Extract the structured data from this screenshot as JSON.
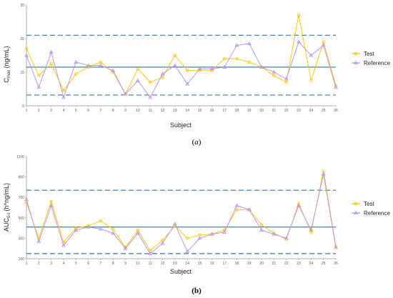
{
  "colors": {
    "test": "#FFC000",
    "reference": "#B48CF0",
    "mean_line": "#2E75B6",
    "limit_line": "#2E75B6",
    "axis": "#999999"
  },
  "panel_labels": [
    {
      "open": "(",
      "letter": "a",
      "close": ")"
    },
    {
      "open": "(",
      "letter": "b",
      "close": ")"
    }
  ],
  "chart_data": [
    {
      "type": "line",
      "xlabel": "Subject",
      "ylabel": {
        "base": "C",
        "sub": "max",
        "rest": " (ng/mL)"
      },
      "x": [
        1,
        2,
        3,
        4,
        5,
        6,
        7,
        8,
        9,
        10,
        11,
        12,
        13,
        14,
        15,
        16,
        17,
        18,
        19,
        20,
        21,
        22,
        23,
        24,
        25,
        26
      ],
      "x_ticks": [
        "1",
        "2",
        "3",
        "4",
        "5",
        "6",
        "7",
        "8",
        "9",
        "10",
        "11",
        "12",
        "13",
        "14",
        "15",
        "16",
        "17",
        "18",
        "19",
        "20",
        "21",
        "22",
        "23",
        "24",
        "25",
        "26"
      ],
      "ylim": [
        5,
        35
      ],
      "y_ticks": [
        "5",
        "15",
        "25",
        "35"
      ],
      "y_tick_values": [
        5,
        15,
        25,
        35
      ],
      "mean_line": 16.5,
      "limit_lines": [
        26,
        8.2
      ],
      "legend": {
        "position": "right",
        "entries": [
          "Test",
          "Reference"
        ]
      },
      "series": [
        {
          "name": "Test",
          "marker": "circle",
          "values": [
            22,
            14,
            17.5,
            9.5,
            14.5,
            16.5,
            18,
            15,
            8.5,
            16,
            12,
            13.5,
            20,
            15.5,
            15.5,
            15.5,
            19,
            19,
            18,
            16.5,
            14,
            12,
            32,
            12.5,
            24,
            11
          ]
        },
        {
          "name": "Reference",
          "marker": "triangle",
          "values": [
            20,
            10.5,
            21,
            7.5,
            18,
            17,
            17,
            15.5,
            8.5,
            12.5,
            7.5,
            14.5,
            17,
            11.5,
            16,
            16,
            16.5,
            23,
            23.5,
            16.5,
            15,
            13,
            24,
            20,
            23,
            10.5
          ]
        }
      ]
    },
    {
      "type": "line",
      "xlabel": "Subject",
      "ylabel": {
        "base": "AUC",
        "sub": "0-t",
        "rest": " (h*ng/mL)"
      },
      "x": [
        1,
        2,
        3,
        4,
        5,
        6,
        7,
        8,
        9,
        10,
        11,
        12,
        13,
        14,
        15,
        16,
        17,
        18,
        19,
        20,
        21,
        22,
        23,
        24,
        25,
        26
      ],
      "x_ticks": [
        "1",
        "2",
        "3",
        "4",
        "5",
        "6",
        "7",
        "8",
        "9",
        "10",
        "11",
        "12",
        "13",
        "14",
        "15",
        "16",
        "17",
        "18",
        "19",
        "20",
        "21",
        "22",
        "23",
        "24",
        "25",
        "26"
      ],
      "ylim": [
        100,
        1100
      ],
      "y_ticks": [
        "100",
        "300",
        "500",
        "700",
        "900",
        "1100"
      ],
      "y_tick_values": [
        100,
        300,
        500,
        700,
        900,
        1100
      ],
      "mean_line": 410,
      "limit_lines": [
        770,
        150
      ],
      "legend": {
        "position": "right",
        "entries": [
          "Test",
          "Reference"
        ]
      },
      "series": [
        {
          "name": "Test",
          "marker": "circle",
          "values": [
            650,
            300,
            660,
            260,
            400,
            420,
            470,
            390,
            210,
            380,
            180,
            280,
            420,
            300,
            330,
            340,
            380,
            580,
            580,
            430,
            350,
            290,
            640,
            360,
            960,
            220
          ]
        },
        {
          "name": "Reference",
          "marker": "triangle",
          "values": [
            680,
            270,
            620,
            230,
            380,
            410,
            390,
            350,
            200,
            350,
            150,
            250,
            440,
            170,
            300,
            340,
            360,
            620,
            580,
            380,
            340,
            300,
            620,
            380,
            930,
            210
          ]
        }
      ]
    }
  ]
}
